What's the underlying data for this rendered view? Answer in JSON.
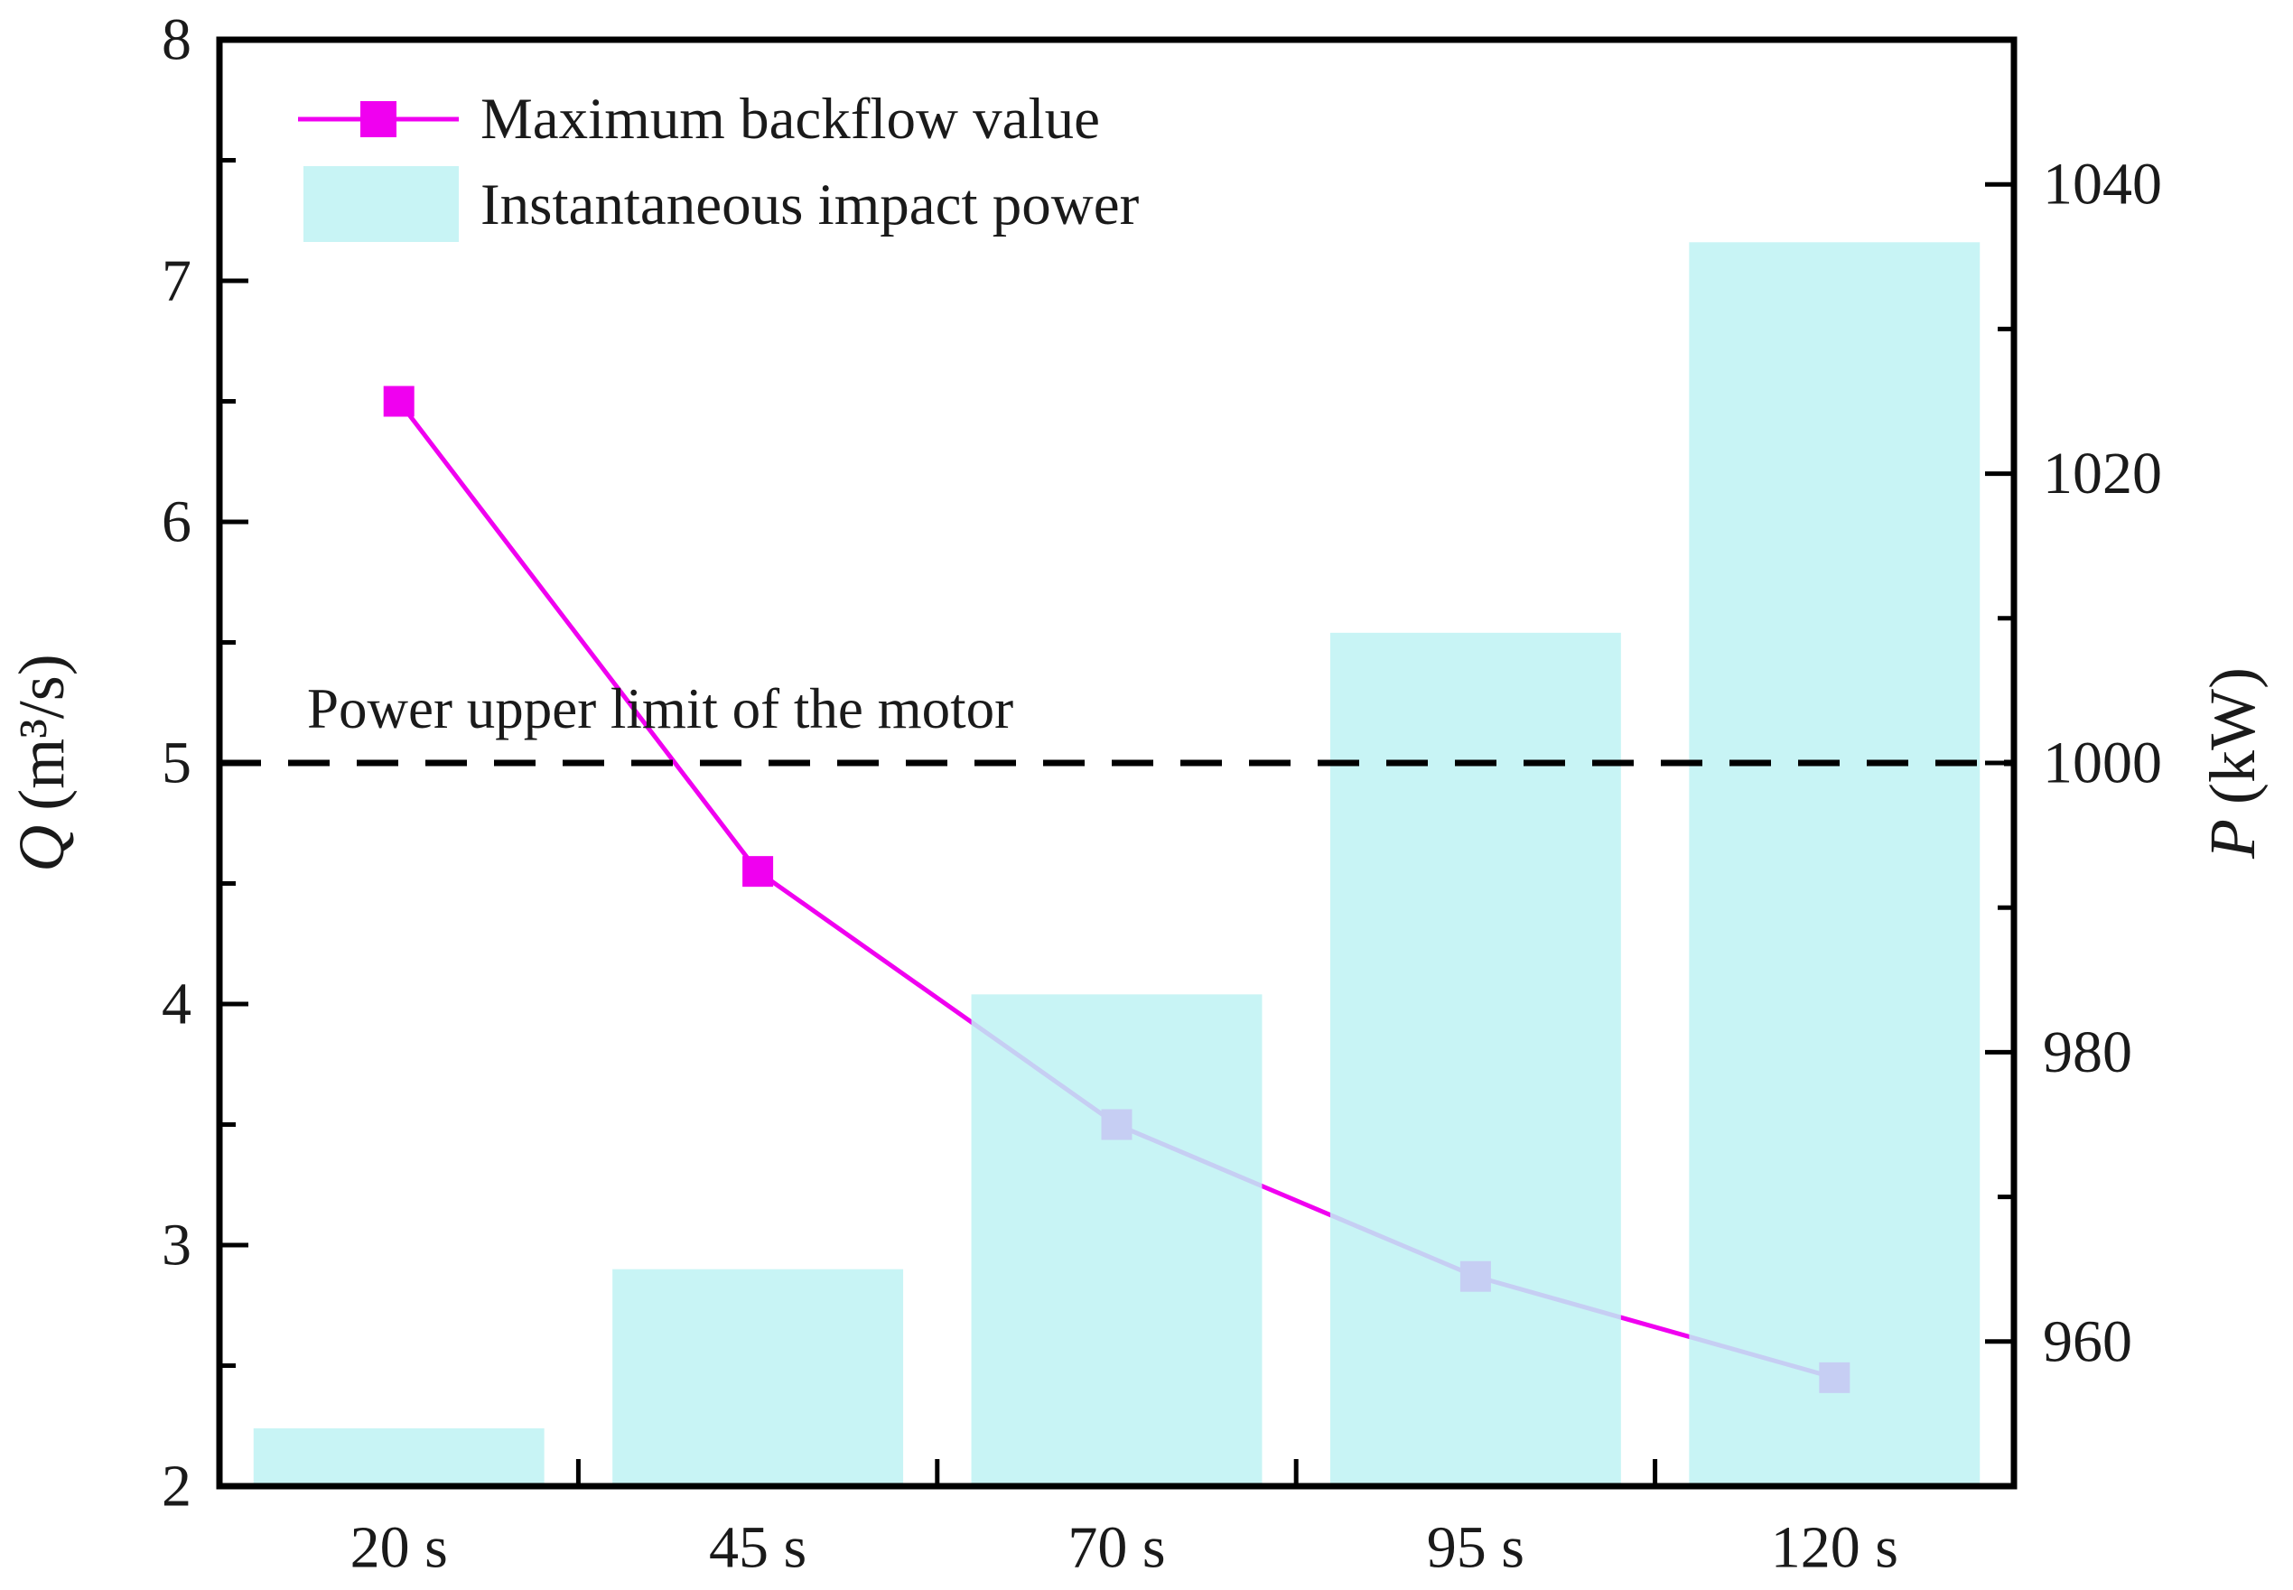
{
  "figure": {
    "background": "#ffffff",
    "text_color": "#1a1a1a"
  },
  "chart_data": {
    "type": "bar+line",
    "categories": [
      "20 s",
      "45 s",
      "70 s",
      "95 s",
      "120 s"
    ],
    "series": [
      {
        "name": "Maximum backflow value",
        "type": "line",
        "axis": "left",
        "marker": "square",
        "color": "#f000f0",
        "values": [
          6.5,
          4.55,
          3.5,
          2.87,
          2.45
        ]
      },
      {
        "name": "Instantaneous impact power",
        "type": "bar",
        "axis": "right",
        "color": "#bef2f3",
        "opacity": 0.85,
        "values": [
          954,
          965,
          984,
          1009,
          1036
        ]
      }
    ],
    "left_axis": {
      "symbol": "Q",
      "unit": "(m³/s)",
      "min": 2,
      "max": 8,
      "ticks": [
        2,
        3,
        4,
        5,
        6,
        7,
        8
      ],
      "minor_step": 0.5
    },
    "right_axis": {
      "symbol": "P",
      "unit": "(kW)",
      "min": 950,
      "max": 1050,
      "ticks": [
        960,
        980,
        1000,
        1020,
        1040
      ],
      "minor_step": 10
    },
    "reference_line": {
      "value_right": 1000,
      "label": "Power upper limit of the motor",
      "style": "dashed",
      "color": "#000000"
    },
    "legend_position": "upper-left",
    "grid": false
  }
}
